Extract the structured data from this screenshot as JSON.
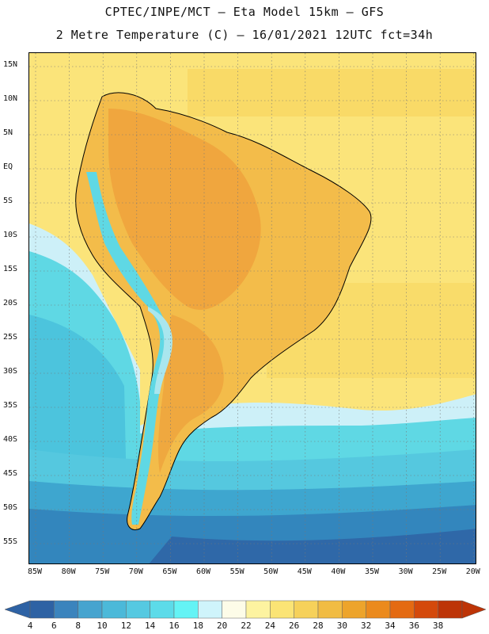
{
  "header": {
    "line1": "CPTEC/INPE/MCT –  Eta Model 15km – GFS",
    "line2": "2 Metre Temperature (C) – 16/01/2021 12UTC fct=34h"
  },
  "map": {
    "lat_labels": [
      "15N",
      "10N",
      "5N",
      "EQ",
      "5S",
      "10S",
      "15S",
      "20S",
      "25S",
      "30S",
      "35S",
      "40S",
      "45S",
      "50S",
      "55S"
    ],
    "lon_labels": [
      "85W",
      "80W",
      "75W",
      "70W",
      "65W",
      "60W",
      "55W",
      "50W",
      "45W",
      "40W",
      "35W",
      "30W",
      "25W",
      "20W"
    ],
    "colors": {
      "ocean_warm": "#fbe47a",
      "ocean_warm2": "#f8d35a",
      "land_hot": "#eea23c",
      "land_warm": "#f3bc4a",
      "andes_cold": "#5fd8e4",
      "andes_mid": "#a9e6ee",
      "cool_ocean": "#cdf0f8",
      "cold1": "#55c8df",
      "cold2": "#3ea6cf",
      "cold3": "#3386bd",
      "cold4": "#2f68a8"
    }
  },
  "colorbar": {
    "ticks": [
      "4",
      "6",
      "8",
      "10",
      "12",
      "14",
      "16",
      "18",
      "20",
      "22",
      "24",
      "26",
      "28",
      "30",
      "32",
      "34",
      "36",
      "38"
    ],
    "colors": [
      "#2e62a4",
      "#3b84bd",
      "#46a4cf",
      "#4bb9d9",
      "#55c9e1",
      "#5cdbe9",
      "#64f3f5",
      "#cff4fb",
      "#fdfce8",
      "#fdf3a0",
      "#fbe475",
      "#f6d15a",
      "#f1bc43",
      "#eda42b",
      "#eb8a1d",
      "#e46a12",
      "#d4490b",
      "#bd3407"
    ],
    "left_arrow_color": "#2e62a4",
    "right_arrow_color": "#bd3407"
  }
}
